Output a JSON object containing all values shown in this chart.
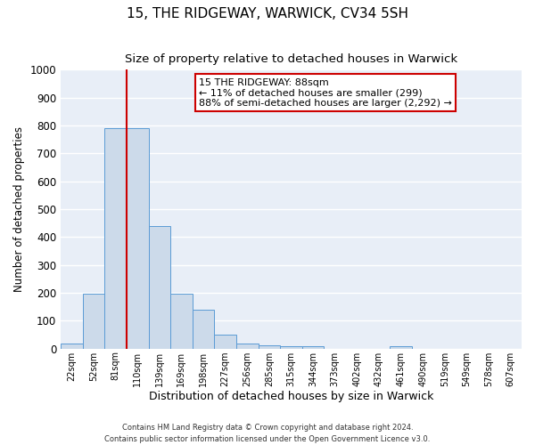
{
  "title": "15, THE RIDGEWAY, WARWICK, CV34 5SH",
  "subtitle": "Size of property relative to detached houses in Warwick",
  "xlabel": "Distribution of detached houses by size in Warwick",
  "ylabel": "Number of detached properties",
  "bin_labels": [
    "22sqm",
    "52sqm",
    "81sqm",
    "110sqm",
    "139sqm",
    "169sqm",
    "198sqm",
    "227sqm",
    "256sqm",
    "285sqm",
    "315sqm",
    "344sqm",
    "373sqm",
    "402sqm",
    "432sqm",
    "461sqm",
    "490sqm",
    "519sqm",
    "549sqm",
    "578sqm",
    "607sqm"
  ],
  "bar_heights": [
    18,
    197,
    790,
    790,
    440,
    197,
    140,
    50,
    18,
    12,
    10,
    10,
    0,
    0,
    0,
    10,
    0,
    0,
    0,
    0,
    0
  ],
  "bar_color": "#ccdaea",
  "bar_edge_color": "#5b9bd5",
  "red_line_bin": 2,
  "annotation_text": "15 THE RIDGEWAY: 88sqm\n← 11% of detached houses are smaller (299)\n88% of semi-detached houses are larger (2,292) →",
  "annotation_box_color": "#ffffff",
  "annotation_box_edge_color": "#cc0000",
  "ylim": [
    0,
    1000
  ],
  "background_color": "#e8eef7",
  "grid_color": "#ffffff",
  "footer_line1": "Contains HM Land Registry data © Crown copyright and database right 2024.",
  "footer_line2": "Contains public sector information licensed under the Open Government Licence v3.0.",
  "red_line_color": "#cc0000",
  "title_fontsize": 11,
  "subtitle_fontsize": 9.5,
  "yticks": [
    0,
    100,
    200,
    300,
    400,
    500,
    600,
    700,
    800,
    900,
    1000
  ]
}
